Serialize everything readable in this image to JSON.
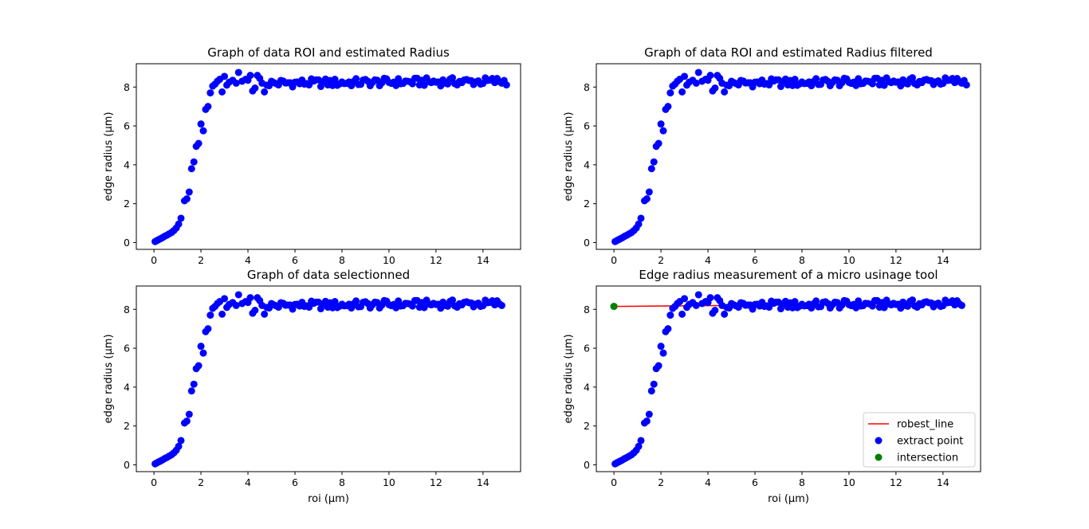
{
  "chart_data": [
    {
      "type": "scatter",
      "title": "Graph of data ROI and estimated Radius",
      "xlabel": "",
      "ylabel": "edge radius (µm)",
      "xlim": [
        -0.75,
        15.6
      ],
      "ylim": [
        -0.35,
        9.2
      ],
      "xticks": [
        0,
        2,
        4,
        6,
        8,
        10,
        12,
        14
      ],
      "yticks": [
        0,
        2,
        4,
        6,
        8
      ],
      "grid": false,
      "series": [
        {
          "name": "",
          "color": "#0000ff"
        }
      ],
      "profile": "full"
    },
    {
      "type": "scatter",
      "title": "Graph of data ROI and estimated Radius filtered",
      "xlabel": "",
      "ylabel": "edge radius (µm)",
      "xlim": [
        -0.75,
        15.6
      ],
      "ylim": [
        -0.35,
        9.2
      ],
      "xticks": [
        0,
        2,
        4,
        6,
        8,
        10,
        12,
        14
      ],
      "yticks": [
        0,
        2,
        4,
        6,
        8
      ],
      "grid": false,
      "series": [
        {
          "name": "",
          "color": "#0000ff"
        }
      ],
      "profile": "full"
    },
    {
      "type": "scatter",
      "title": "Graph of data selectionned",
      "xlabel": "roi (µm)",
      "ylabel": "edge radius (µm)",
      "xlim": [
        -0.75,
        15.6
      ],
      "ylim": [
        -0.35,
        9.2
      ],
      "xticks": [
        0,
        2,
        4,
        6,
        8,
        10,
        12,
        14
      ],
      "yticks": [
        0,
        2,
        4,
        6,
        8
      ],
      "grid": false,
      "series": [
        {
          "name": "",
          "color": "#0000ff"
        }
      ],
      "profile": "selected"
    },
    {
      "type": "scatter",
      "title": "Edge radius measurement of a micro usinage tool",
      "xlabel": "roi (µm)",
      "ylabel": "edge radius (µm)",
      "xlim": [
        -0.75,
        15.6
      ],
      "ylim": [
        -0.35,
        9.2
      ],
      "xticks": [
        0,
        2,
        4,
        6,
        8,
        10,
        12,
        14
      ],
      "yticks": [
        0,
        2,
        4,
        6,
        8
      ],
      "grid": false,
      "legend_position": "lower-right",
      "series": [
        {
          "name": "robest_line",
          "type": "line",
          "color": "#ff0000",
          "x": [
            0,
            14.8
          ],
          "y": [
            8.15,
            8.3
          ]
        },
        {
          "name": "extract point",
          "type": "scatter",
          "color": "#0000ff"
        },
        {
          "name": "intersection",
          "type": "scatter",
          "color": "#008000",
          "x": [
            0
          ],
          "y": [
            8.15
          ]
        }
      ],
      "profile": "selected"
    }
  ],
  "curve": {
    "rise": [
      [
        0.05,
        0.05
      ],
      [
        0.12,
        0.1
      ],
      [
        0.2,
        0.15
      ],
      [
        0.28,
        0.2
      ],
      [
        0.36,
        0.25
      ],
      [
        0.45,
        0.32
      ],
      [
        0.55,
        0.38
      ],
      [
        0.65,
        0.45
      ],
      [
        0.75,
        0.52
      ],
      [
        0.85,
        0.62
      ],
      [
        0.95,
        0.75
      ],
      [
        1.05,
        0.95
      ],
      [
        1.15,
        1.25
      ],
      [
        1.3,
        2.15
      ],
      [
        1.4,
        2.25
      ],
      [
        1.5,
        2.6
      ],
      [
        1.6,
        3.8
      ],
      [
        1.7,
        4.15
      ],
      [
        1.8,
        4.95
      ],
      [
        1.9,
        5.1
      ],
      [
        2.0,
        6.1
      ],
      [
        2.1,
        5.75
      ],
      [
        2.2,
        6.85
      ],
      [
        2.3,
        7.0
      ],
      [
        2.4,
        7.7
      ],
      [
        2.5,
        8.05
      ],
      [
        2.6,
        8.15
      ],
      [
        2.7,
        8.3
      ],
      [
        2.8,
        8.4
      ],
      [
        2.9,
        7.75
      ],
      [
        3.0,
        8.55
      ],
      [
        3.1,
        8.1
      ],
      [
        3.2,
        8.25
      ],
      [
        3.35,
        8.35
      ],
      [
        3.5,
        8.2
      ],
      [
        3.6,
        8.75
      ],
      [
        3.75,
        8.3
      ],
      [
        3.9,
        8.4
      ],
      [
        4.0,
        8.35
      ],
      [
        4.1,
        8.6
      ],
      [
        4.2,
        7.8
      ],
      [
        4.3,
        7.95
      ],
      [
        4.4,
        8.6
      ],
      [
        4.5,
        8.45
      ],
      [
        4.6,
        8.2
      ],
      [
        4.7,
        7.75
      ],
      [
        4.8,
        8.1
      ]
    ],
    "plateau_start": 4.9,
    "plateau_end": 15.0,
    "plateau_end_selected": 14.8,
    "plateau_step": 0.1,
    "plateau_level": 8.2
  }
}
